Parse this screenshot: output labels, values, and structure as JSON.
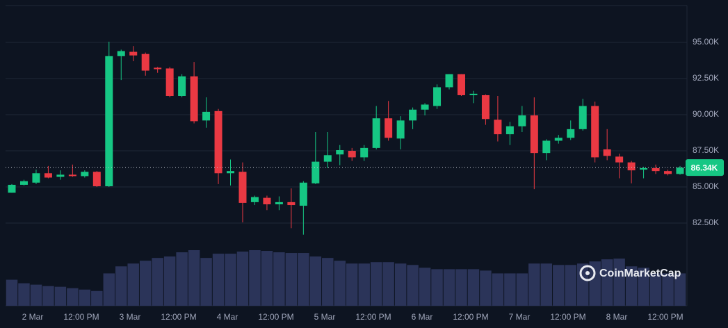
{
  "chart_data": {
    "type": "candlestick",
    "open": [
      84600,
      85150,
      85300,
      85950,
      85700,
      85850,
      85750,
      86050,
      85050,
      94050,
      94350,
      94200,
      93250,
      93200,
      91300,
      92650,
      89600,
      90250,
      85950,
      86050,
      83950,
      84250,
      83800,
      83950,
      83700,
      85250,
      86750,
      87250,
      87500,
      87050,
      87700,
      89750,
      88350,
      89600,
      90350,
      90600,
      91900,
      92800,
      91350,
      91350,
      89650,
      88650,
      89200,
      89950,
      87350,
      88200,
      88400,
      89000,
      90600,
      87600,
      87100,
      86700,
      86200,
      86300,
      86100,
      85900
    ],
    "high": [
      85200,
      85500,
      86200,
      86450,
      86150,
      86550,
      86150,
      86100,
      95050,
      94500,
      94750,
      94300,
      93300,
      93300,
      92800,
      93650,
      91200,
      90400,
      86900,
      86700,
      84400,
      84400,
      84350,
      84900,
      85400,
      88800,
      88800,
      87900,
      87700,
      87900,
      90600,
      90950,
      89900,
      90500,
      90800,
      92100,
      92800,
      92800,
      91650,
      91400,
      91300,
      89500,
      90600,
      91200,
      88300,
      88600,
      89600,
      91100,
      90900,
      89000,
      87300,
      86800,
      86400,
      86550,
      86200,
      86450
    ],
    "low": [
      84600,
      85100,
      85200,
      85600,
      85500,
      85700,
      85650,
      85000,
      85000,
      92400,
      93700,
      92700,
      92900,
      91200,
      91200,
      89400,
      89100,
      85200,
      85100,
      82550,
      83750,
      83400,
      83400,
      82150,
      81700,
      85200,
      86300,
      86500,
      86800,
      86800,
      87600,
      88200,
      87600,
      89000,
      89950,
      90400,
      91750,
      91300,
      90800,
      89300,
      88150,
      87900,
      88800,
      84850,
      86850,
      88000,
      88250,
      88900,
      86700,
      86850,
      85600,
      85250,
      85600,
      85900,
      85800,
      85850
    ],
    "close": [
      85150,
      85400,
      85950,
      85650,
      85850,
      85750,
      86050,
      85050,
      94050,
      94400,
      94100,
      93050,
      93150,
      91300,
      92650,
      89550,
      90200,
      85950,
      86100,
      83900,
      84300,
      83800,
      83950,
      83750,
      85300,
      86750,
      87200,
      87550,
      87050,
      87700,
      89750,
      88400,
      89600,
      90350,
      90700,
      91900,
      92800,
      91350,
      91450,
      89700,
      88650,
      89200,
      89950,
      87350,
      88200,
      88400,
      89000,
      90600,
      87050,
      87150,
      86700,
      86150,
      86300,
      86100,
      85900,
      86340
    ],
    "volume": [
      37,
      32,
      30,
      28,
      27,
      25,
      23,
      21,
      46,
      56,
      60,
      64,
      68,
      70,
      76,
      79,
      68,
      74,
      74,
      77,
      79,
      78,
      76,
      75,
      75,
      70,
      68,
      64,
      60,
      60,
      62,
      62,
      60,
      58,
      54,
      52,
      52,
      52,
      52,
      50,
      46,
      46,
      46,
      60,
      60,
      58,
      58,
      60,
      63,
      66,
      67,
      56,
      54,
      46,
      46,
      46
    ],
    "up_color": "#16c784",
    "down_color": "#ea3943",
    "volume_color": "#2b3459",
    "xtick_labels": [
      "2 Mar",
      "12:00 PM",
      "3 Mar",
      "12:00 PM",
      "4 Mar",
      "12:00 PM",
      "5 Mar",
      "12:00 PM",
      "6 Mar",
      "12:00 PM",
      "7 Mar",
      "12:00 PM",
      "8 Mar",
      "12:00 PM"
    ],
    "ylim": [
      76800,
      97550
    ],
    "yticks": [
      {
        "value": 82500,
        "label": "82.50K"
      },
      {
        "value": 85000,
        "label": "85.00K"
      },
      {
        "value": 87500,
        "label": "87.50K"
      },
      {
        "value": 90000,
        "label": "90.00K"
      },
      {
        "value": 92500,
        "label": "92.50K"
      },
      {
        "value": 95000,
        "label": "95.00K"
      }
    ],
    "grid": true,
    "last_price": 86340,
    "last_price_label": "86.34K",
    "watermark": "CoinMarketCap"
  }
}
